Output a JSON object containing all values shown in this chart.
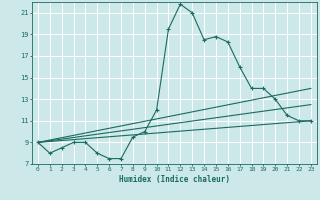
{
  "xlabel": "Humidex (Indice chaleur)",
  "bg_color": "#cce8e8",
  "grid_color": "#ffffff",
  "line_color": "#1a6b60",
  "xlim": [
    -0.5,
    23.5
  ],
  "ylim": [
    7,
    22
  ],
  "xticks": [
    0,
    1,
    2,
    3,
    4,
    5,
    6,
    7,
    8,
    9,
    10,
    11,
    12,
    13,
    14,
    15,
    16,
    17,
    18,
    19,
    20,
    21,
    22,
    23
  ],
  "yticks": [
    7,
    9,
    11,
    13,
    15,
    17,
    19,
    21
  ],
  "series": [
    {
      "x": [
        0,
        1,
        2,
        3,
        4,
        5,
        6,
        7,
        8,
        9,
        10,
        11,
        12,
        13,
        14,
        15,
        16,
        17,
        18,
        19,
        20,
        21,
        22,
        23
      ],
      "y": [
        9.0,
        8.0,
        8.5,
        9.0,
        9.0,
        8.0,
        7.5,
        7.5,
        9.5,
        10.0,
        12.0,
        19.5,
        21.8,
        21.0,
        18.5,
        18.8,
        18.3,
        16.0,
        14.0,
        14.0,
        13.0,
        11.5,
        11.0,
        11.0
      ],
      "marker": true
    },
    {
      "x": [
        0,
        23
      ],
      "y": [
        9.0,
        14.0
      ],
      "marker": false
    },
    {
      "x": [
        0,
        23
      ],
      "y": [
        9.0,
        12.5
      ],
      "marker": false
    },
    {
      "x": [
        0,
        23
      ],
      "y": [
        9.0,
        11.0
      ],
      "marker": false
    }
  ]
}
